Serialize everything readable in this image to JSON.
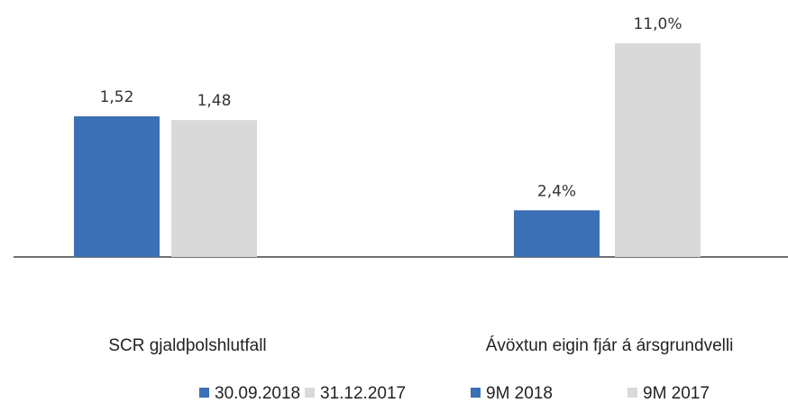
{
  "chart_data": [
    {
      "type": "bar",
      "categories": [
        "SCR gjaldþolshlutfall"
      ],
      "series": [
        {
          "name": "30.09.2018",
          "color": "#3b6fb6",
          "values": [
            1.52
          ],
          "value_labels": [
            "1,52"
          ]
        },
        {
          "name": "31.12.2017",
          "color": "#d9d9d9",
          "values": [
            1.48
          ],
          "value_labels": [
            "1,48"
          ]
        }
      ]
    },
    {
      "type": "bar",
      "categories": [
        "Ávöxtun eigin fjár á ársgrundvelli"
      ],
      "series": [
        {
          "name": "9M 2018",
          "color": "#3b6fb6",
          "values": [
            2.4
          ],
          "value_labels": [
            "2,4%"
          ]
        },
        {
          "name": "9M 2017",
          "color": "#d9d9d9",
          "values": [
            11.0
          ],
          "value_labels": [
            "11,0%"
          ]
        }
      ]
    }
  ]
}
